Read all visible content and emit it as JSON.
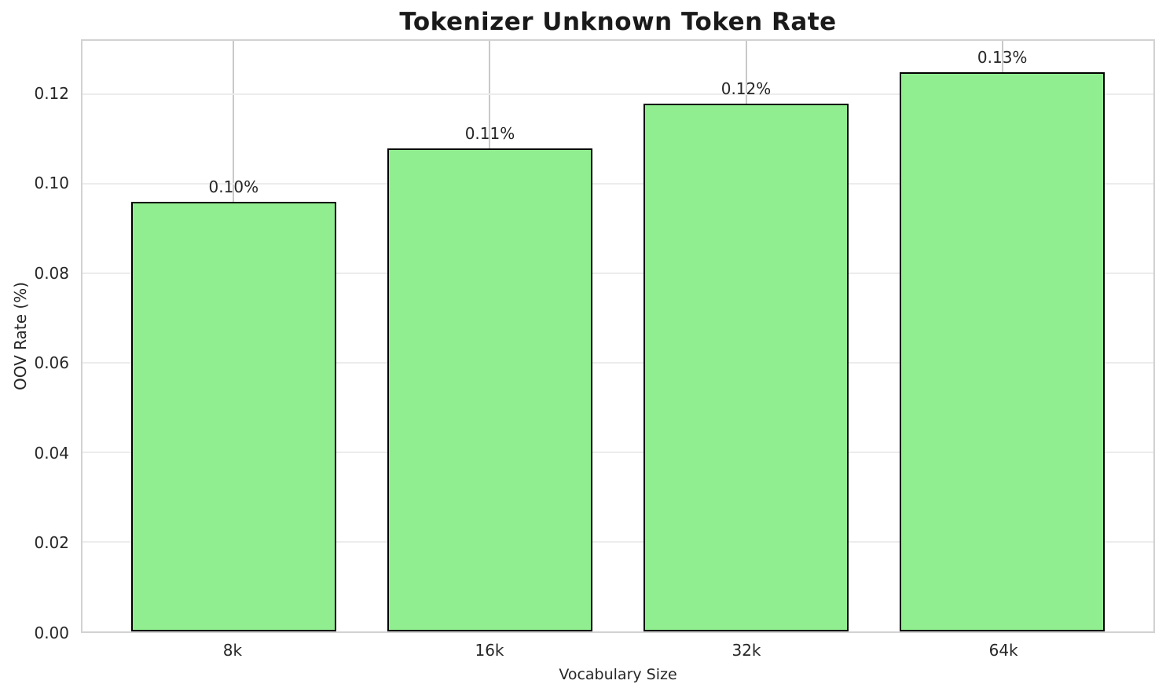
{
  "chart_data": {
    "type": "bar",
    "title": "Tokenizer Unknown Token Rate",
    "xlabel": "Vocabulary Size",
    "ylabel": "OOV Rate (%)",
    "categories": [
      "8k",
      "16k",
      "32k",
      "64k"
    ],
    "values": [
      0.096,
      0.108,
      0.118,
      0.125
    ],
    "bar_labels": [
      "0.10%",
      "0.11%",
      "0.12%",
      "0.13%"
    ],
    "yticks": [
      0.0,
      0.02,
      0.04,
      0.06,
      0.08,
      0.1,
      0.12
    ],
    "ytick_labels": [
      "0.00",
      "0.02",
      "0.04",
      "0.06",
      "0.08",
      "0.10",
      "0.12"
    ],
    "ylim": [
      0,
      0.132
    ],
    "grid": true,
    "legend": "none",
    "bar_color": "#90EE90",
    "bar_edge_color": "#000000",
    "text_color": "#262626",
    "grid_color_h": "#ececec",
    "grid_color_v": "#c9c9c9",
    "spine_color": "#d2d2d2"
  }
}
